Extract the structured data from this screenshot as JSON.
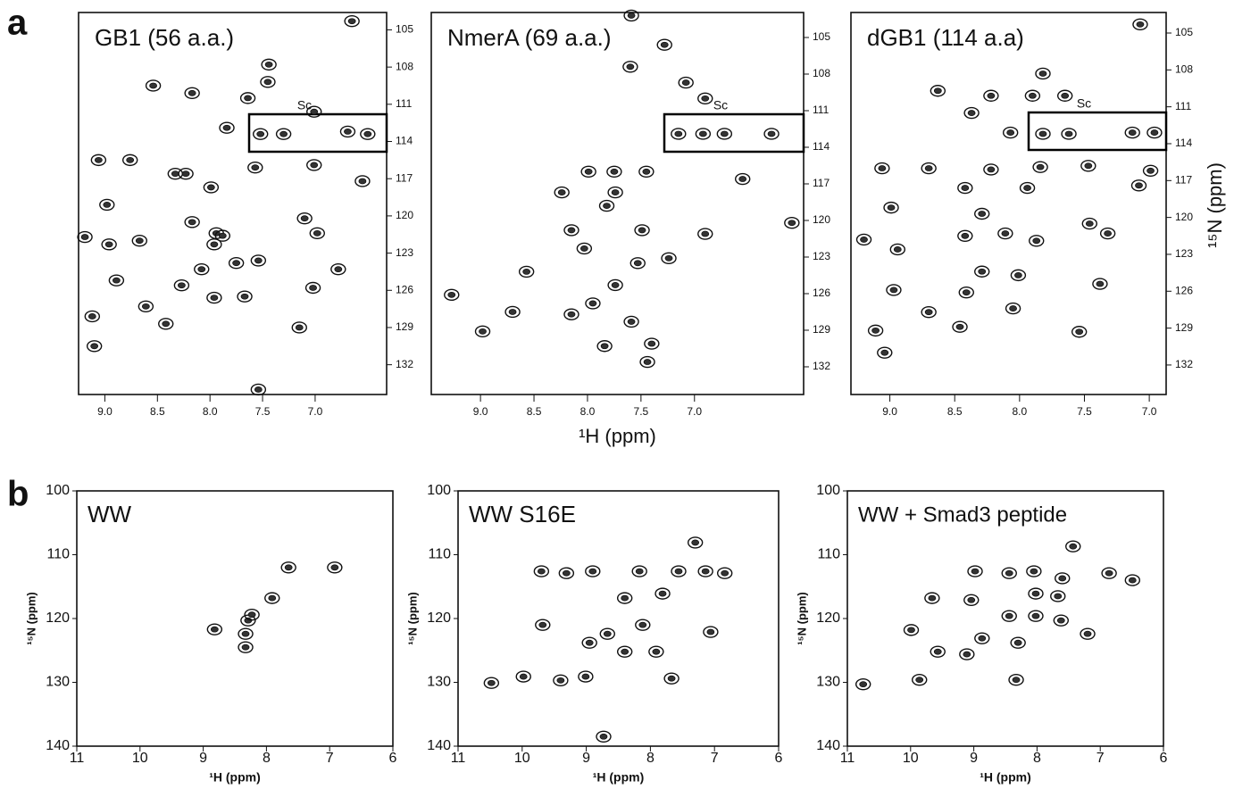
{
  "panel_labels": [
    "a",
    "b"
  ],
  "chart_data": [
    {
      "type": "scatter",
      "title": "GB1 (56 a.a.)",
      "annotation": "Sc",
      "xlim": [
        9.25,
        6.32
      ],
      "ylim": [
        103.6,
        134.4
      ],
      "xticks": [
        {
          "value": 9,
          "label": "9.0"
        },
        {
          "value": 8.5,
          "label": "8.5"
        },
        {
          "value": 8,
          "label": "8.0"
        },
        {
          "value": 7.5,
          "label": "7.5"
        },
        {
          "value": 7,
          "label": "7.0"
        }
      ],
      "yticks": [
        105,
        108,
        111,
        114,
        117,
        120,
        123,
        126,
        129,
        132
      ],
      "x": [
        6.65,
        7.44,
        7.45,
        8.54,
        8.17,
        7.64,
        7.01,
        7.84,
        7.52,
        7.3,
        6.69,
        6.5,
        9.06,
        8.76,
        8.33,
        8.23,
        7.57,
        7.01,
        7.99,
        6.55,
        8.98,
        7.1,
        6.98,
        9.19,
        8.67,
        8.96,
        7.94,
        7.88,
        8.17,
        7.96,
        7.75,
        7.54,
        8.08,
        8.89,
        6.78,
        8.27,
        7.67,
        7.02,
        8.61,
        7.96,
        9.12,
        8.42,
        7.15,
        9.1,
        7.54
      ],
      "values": [
        104.3,
        107.8,
        109.2,
        109.5,
        110.1,
        110.5,
        111.6,
        112.9,
        113.4,
        113.4,
        113.2,
        113.4,
        115.5,
        115.5,
        116.6,
        116.6,
        116.1,
        115.9,
        117.7,
        117.2,
        119.1,
        120.2,
        121.4,
        121.7,
        122.0,
        122.3,
        121.4,
        121.6,
        120.5,
        122.3,
        123.8,
        123.6,
        124.3,
        125.2,
        124.3,
        125.6,
        126.5,
        125.8,
        127.3,
        126.6,
        128.1,
        128.7,
        129.0,
        130.5,
        134.0
      ]
    },
    {
      "type": "scatter",
      "title": "NmerA (69 a.a.)",
      "annotation": "Sc",
      "xlabel": "¹H (ppm)",
      "xlim": [
        9.46,
        5.98
      ],
      "ylim": [
        102.95,
        134.27
      ],
      "xticks": [
        {
          "value": 9,
          "label": "9.0"
        },
        {
          "value": 8.5,
          "label": "8.5"
        },
        {
          "value": 8,
          "label": "8.0"
        },
        {
          "value": 7.5,
          "label": "7.5"
        },
        {
          "value": 7,
          "label": "7.0"
        }
      ],
      "yticks": [
        105,
        108,
        111,
        114,
        117,
        120,
        123,
        126,
        129,
        132
      ],
      "x": [
        7.59,
        7.28,
        7.6,
        7.08,
        6.9,
        7.15,
        6.72,
        6.28,
        6.92,
        7.75,
        7.99,
        7.45,
        8.24,
        7.74,
        6.55,
        7.82,
        8.15,
        7.49,
        6.9,
        6.09,
        8.03,
        7.53,
        8.57,
        7.24,
        7.74,
        9.27,
        7.95,
        8.15,
        8.7,
        7.59,
        7.4,
        7.84,
        7.44,
        8.98
      ],
      "values": [
        103.2,
        105.6,
        107.4,
        108.7,
        110.0,
        112.9,
        112.9,
        112.9,
        112.9,
        116.0,
        116.0,
        116.0,
        117.7,
        117.7,
        116.6,
        118.8,
        120.8,
        120.8,
        121.1,
        120.2,
        122.3,
        123.5,
        124.2,
        123.1,
        125.3,
        126.1,
        126.8,
        127.7,
        127.5,
        128.3,
        130.1,
        130.3,
        131.6,
        129.1
      ]
    },
    {
      "type": "scatter",
      "title": "dGB1 (114 a.a)",
      "annotation": "Sc",
      "ylabel": "¹⁵N (ppm)",
      "xlim": [
        9.3,
        6.87
      ],
      "ylim": [
        103.33,
        134.4
      ],
      "xticks": [
        {
          "value": 9,
          "label": "9.0"
        },
        {
          "value": 8.5,
          "label": "8.5"
        },
        {
          "value": 8,
          "label": "8.0"
        },
        {
          "value": 7.5,
          "label": "7.5"
        },
        {
          "value": 7,
          "label": "7.0"
        }
      ],
      "yticks": [
        105,
        108,
        111,
        114,
        117,
        120,
        123,
        126,
        129,
        132
      ],
      "x": [
        7.07,
        7.82,
        7.9,
        8.63,
        8.22,
        7.65,
        8.37,
        8.07,
        7.82,
        7.62,
        7.13,
        6.96,
        7.84,
        6.99,
        9.06,
        8.7,
        8.22,
        7.47,
        7.08,
        8.42,
        7.94,
        8.99,
        8.29,
        7.46,
        8.11,
        8.42,
        7.87,
        9.2,
        7.32,
        8.94,
        8.29,
        8.01,
        8.41,
        7.38,
        8.97,
        8.05,
        8.7,
        8.46,
        9.11,
        7.54,
        9.04
      ],
      "values": [
        104.3,
        108.3,
        110.1,
        109.7,
        110.1,
        110.1,
        111.5,
        113.1,
        113.2,
        113.2,
        113.1,
        113.1,
        115.9,
        116.2,
        116.0,
        116.0,
        116.1,
        115.8,
        117.4,
        117.6,
        117.6,
        119.2,
        119.7,
        120.5,
        121.3,
        121.5,
        121.9,
        121.8,
        121.3,
        122.6,
        124.4,
        124.7,
        126.1,
        125.4,
        125.9,
        127.4,
        127.7,
        128.9,
        129.2,
        129.3,
        131.0
      ]
    },
    {
      "type": "scatter",
      "title": "WW",
      "xlabel": "¹H (ppm)",
      "ylabel": "¹⁵N (ppm)",
      "xlim": [
        11,
        6
      ],
      "ylim": [
        100,
        140
      ],
      "xticks": [
        11,
        10,
        9,
        8,
        7,
        6
      ],
      "yticks": [
        100,
        110,
        120,
        130,
        140
      ],
      "x": [
        7.65,
        6.92,
        7.91,
        8.82,
        8.29,
        8.33,
        8.33,
        8.23
      ],
      "values": [
        112.0,
        112.0,
        116.8,
        121.7,
        120.3,
        124.5,
        122.4,
        119.4
      ]
    },
    {
      "type": "scatter",
      "title": "WW S16E",
      "xlabel": "¹H (ppm)",
      "ylabel": "¹⁵N (ppm)",
      "xlim": [
        11,
        6
      ],
      "ylim": [
        100,
        140
      ],
      "xticks": [
        11,
        10,
        9,
        8,
        7,
        6
      ],
      "yticks": [
        100,
        110,
        120,
        130,
        140
      ],
      "x": [
        7.3,
        9.7,
        9.31,
        8.9,
        8.17,
        7.56,
        7.14,
        6.84,
        9.68,
        7.81,
        8.4,
        8.12,
        8.67,
        8.95,
        8.4,
        7.91,
        7.06,
        10.48,
        9.98,
        9.01,
        7.67,
        9.4,
        8.73
      ],
      "values": [
        108.1,
        112.6,
        112.9,
        112.6,
        112.6,
        112.6,
        112.6,
        112.9,
        121.0,
        116.1,
        116.8,
        121.0,
        122.4,
        123.8,
        125.2,
        125.2,
        122.1,
        130.1,
        129.1,
        129.1,
        129.4,
        129.7,
        138.5
      ]
    },
    {
      "type": "scatter",
      "title": "WW + Smad3 peptide",
      "xlabel": "¹H (ppm)",
      "ylabel": "¹⁵N (ppm)",
      "xlim": [
        11,
        6
      ],
      "ylim": [
        100,
        140
      ],
      "xticks": [
        11,
        10,
        9,
        8,
        7,
        6
      ],
      "yticks": [
        100,
        110,
        120,
        130,
        140
      ],
      "x": [
        7.43,
        8.98,
        8.44,
        8.05,
        7.6,
        6.86,
        6.49,
        9.66,
        9.04,
        7.67,
        8.02,
        8.44,
        8.02,
        8.87,
        8.3,
        7.62,
        7.2,
        9.99,
        9.11,
        9.57,
        9.86,
        10.75,
        8.33
      ],
      "values": [
        108.7,
        112.6,
        112.9,
        112.6,
        113.7,
        112.9,
        114.0,
        116.8,
        117.1,
        116.5,
        116.1,
        119.6,
        119.6,
        123.1,
        123.8,
        120.3,
        122.4,
        121.8,
        125.6,
        125.2,
        129.6,
        130.3,
        129.6
      ]
    }
  ]
}
